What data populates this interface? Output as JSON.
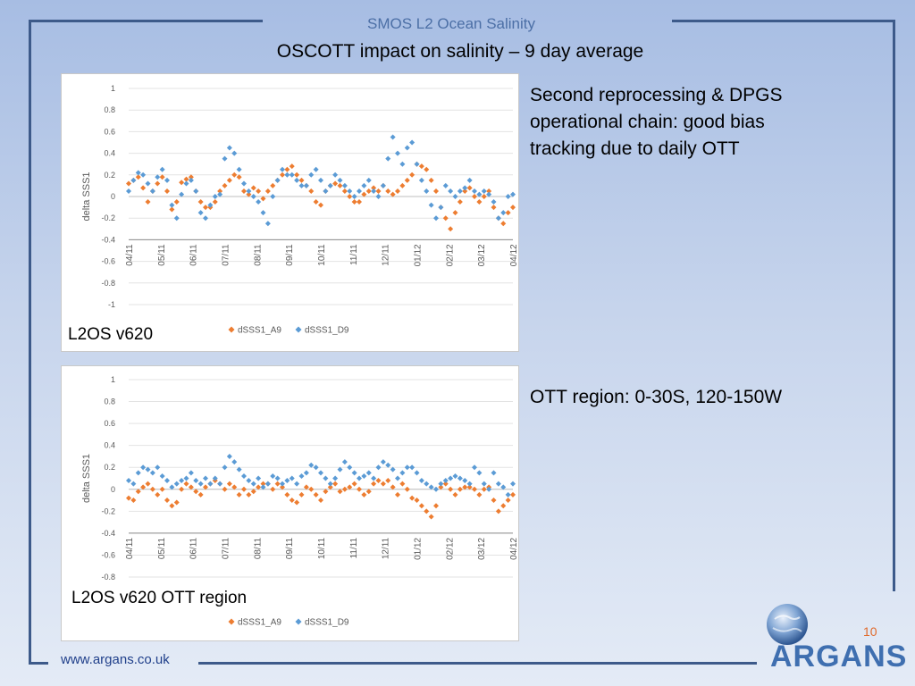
{
  "header": {
    "title": "SMOS L2 Ocean Salinity"
  },
  "slide": {
    "title": "OSCOTT impact on salinity – 9 day average"
  },
  "notes": {
    "first": [
      "Second reprocessing & DPGS",
      "operational chain: good bias",
      "tracking due to daily OTT"
    ],
    "second": "OTT region: 0-30S, 120-150W"
  },
  "footer": {
    "url": "www.argans.co.uk",
    "page_number": "10",
    "logo_text": "ARGANS"
  },
  "colors": {
    "A9": "#ed7d31",
    "D9": "#5b9bd5"
  },
  "chart_data": [
    {
      "type": "scatter",
      "caption": "L2OS v620",
      "ylabel": "delta SSS1",
      "ylim": [
        -1,
        1
      ],
      "yticks": [
        "1",
        "0.8",
        "0.6",
        "0.4",
        "0.2",
        "0",
        "-0.2",
        "-0.4",
        "-0.6",
        "-0.8",
        "-1"
      ],
      "categories": [
        "04/11",
        "05/11",
        "06/11",
        "07/11",
        "08/11",
        "09/11",
        "10/11",
        "11/11",
        "12/11",
        "01/12",
        "02/12",
        "03/12",
        "04/12"
      ],
      "series": [
        {
          "name": "dSSS1_A9",
          "values": [
            0.12,
            0.15,
            0.18,
            0.08,
            -0.05,
            0.05,
            0.12,
            0.18,
            0.05,
            -0.12,
            -0.05,
            0.13,
            0.16,
            0.18,
            0.05,
            -0.05,
            -0.1,
            -0.1,
            -0.05,
            0.05,
            0.1,
            0.15,
            0.2,
            0.18,
            0.05,
            0.02,
            0.08,
            0.05,
            -0.02,
            0.05,
            0.1,
            0.15,
            0.2,
            0.25,
            0.28,
            0.2,
            0.15,
            0.1,
            0.05,
            -0.05,
            -0.08,
            0.05,
            0.1,
            0.12,
            0.1,
            0.05,
            0,
            -0.05,
            -0.05,
            0.02,
            0.05,
            0.08,
            0.05,
            0.1,
            0.05,
            0.02,
            0.05,
            0.1,
            0.15,
            0.2,
            0.3,
            0.28,
            0.25,
            0.15,
            0.05,
            -0.1,
            -0.2,
            -0.3,
            -0.15,
            -0.05,
            0.05,
            0.08,
            0,
            -0.05,
            0,
            0.05,
            -0.1,
            -0.2,
            -0.25,
            -0.15,
            -0.1
          ]
        },
        {
          "name": "dSSS1_D9",
          "values": [
            0.05,
            0.15,
            0.22,
            0.2,
            0.12,
            0.05,
            0.18,
            0.25,
            0.15,
            -0.08,
            -0.2,
            0.02,
            0.12,
            0.15,
            0.05,
            -0.15,
            -0.2,
            -0.08,
            0,
            0.02,
            0.35,
            0.45,
            0.4,
            0.25,
            0.12,
            0.05,
            0,
            -0.05,
            -0.15,
            -0.25,
            0,
            0.15,
            0.25,
            0.2,
            0.2,
            0.15,
            0.1,
            0.1,
            0.2,
            0.25,
            0.15,
            0.05,
            0.1,
            0.2,
            0.15,
            0.1,
            0.05,
            0,
            0.05,
            0.1,
            0.15,
            0.05,
            0,
            0.1,
            0.35,
            0.55,
            0.4,
            0.3,
            0.45,
            0.5,
            0.3,
            0.15,
            0.05,
            -0.08,
            -0.2,
            -0.1,
            0.1,
            0.05,
            0,
            0.05,
            0.08,
            0.15,
            0.05,
            0.02,
            0.05,
            0.02,
            -0.05,
            -0.2,
            -0.15,
            0,
            0.02
          ]
        }
      ]
    },
    {
      "type": "scatter",
      "caption": "L2OS v620 OTT region",
      "ylabel": "delta SSS1",
      "ylim": [
        -0.8,
        1
      ],
      "yticks": [
        "1",
        "0.8",
        "0.6",
        "0.4",
        "0.2",
        "0",
        "-0.2",
        "-0.4",
        "-0.6",
        "-0.8"
      ],
      "categories": [
        "04/11",
        "05/11",
        "06/11",
        "07/11",
        "08/11",
        "09/11",
        "10/11",
        "11/11",
        "12/11",
        "01/12",
        "02/12",
        "03/12",
        "04/12"
      ],
      "series": [
        {
          "name": "dSSS1_A9",
          "values": [
            -0.08,
            -0.1,
            -0.02,
            0.02,
            0.05,
            0,
            -0.05,
            0,
            -0.1,
            -0.15,
            -0.12,
            0,
            0.05,
            0.02,
            -0.02,
            -0.05,
            0.02,
            0.05,
            0.08,
            0.05,
            0,
            0.05,
            0.02,
            -0.05,
            0,
            -0.05,
            -0.02,
            0.02,
            0.05,
            0.05,
            0,
            0.05,
            0.02,
            -0.05,
            -0.1,
            -0.12,
            -0.05,
            0.02,
            0,
            -0.05,
            -0.1,
            -0.02,
            0.02,
            0.05,
            -0.02,
            0,
            0.02,
            0.05,
            0,
            -0.05,
            -0.02,
            0.05,
            0.08,
            0.05,
            0.08,
            0.02,
            -0.05,
            0.05,
            0,
            -0.08,
            -0.1,
            -0.15,
            -0.2,
            -0.25,
            -0.15,
            0.02,
            0.05,
            0,
            -0.05,
            0,
            0.02,
            0.02,
            0,
            -0.05,
            0,
            0.02,
            -0.1,
            -0.2,
            -0.15,
            -0.1,
            -0.05
          ]
        },
        {
          "name": "dSSS1_D9",
          "values": [
            0.08,
            0.05,
            0.15,
            0.2,
            0.18,
            0.15,
            0.2,
            0.12,
            0.08,
            0.02,
            0.05,
            0.08,
            0.1,
            0.15,
            0.08,
            0.05,
            0.1,
            0.05,
            0.1,
            0.05,
            0.2,
            0.3,
            0.25,
            0.18,
            0.12,
            0.08,
            0.05,
            0.1,
            0.02,
            0.05,
            0.12,
            0.1,
            0.05,
            0.08,
            0.1,
            0.05,
            0.12,
            0.15,
            0.22,
            0.2,
            0.15,
            0.1,
            0.05,
            0.1,
            0.18,
            0.25,
            0.2,
            0.15,
            0.1,
            0.12,
            0.15,
            0.1,
            0.2,
            0.25,
            0.22,
            0.18,
            0.1,
            0.15,
            0.2,
            0.2,
            0.15,
            0.08,
            0.05,
            0.02,
            0,
            0.05,
            0.08,
            0.1,
            0.12,
            0.1,
            0.08,
            0.05,
            0.2,
            0.15,
            0.05,
            0,
            0.15,
            0.05,
            0.02,
            -0.05,
            0.05
          ]
        }
      ]
    }
  ]
}
